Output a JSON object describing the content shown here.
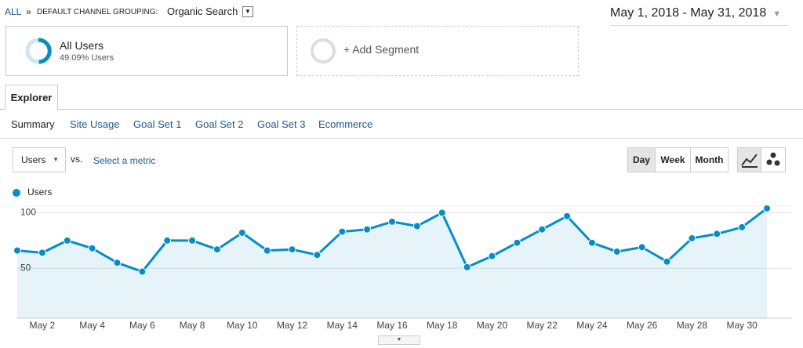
{
  "breadcrumb": {
    "root": "ALL",
    "separator": "»",
    "dimension": "DEFAULT CHANNEL GROUPING:",
    "value": "Organic Search"
  },
  "date_range": "May 1, 2018 - May 31, 2018",
  "segments": [
    {
      "name": "All Users",
      "detail": "49.09% Users"
    },
    {
      "name": "+ Add Segment"
    }
  ],
  "tabs": [
    "Explorer"
  ],
  "subtabs": [
    "Summary",
    "Site Usage",
    "Goal Set 1",
    "Goal Set 2",
    "Goal Set 3",
    "Ecommerce"
  ],
  "metric_selector": {
    "metric": "Users",
    "vs": "vs.",
    "secondary": "Select a metric"
  },
  "granularity": [
    "Day",
    "Week",
    "Month"
  ],
  "chart_data": {
    "type": "line",
    "categories": [
      null,
      "May 2",
      null,
      "May 4",
      null,
      "May 6",
      null,
      "May 8",
      null,
      "May 10",
      null,
      "May 12",
      null,
      "May 14",
      null,
      "May 16",
      null,
      "May 18",
      null,
      "May 20",
      null,
      "May 22",
      null,
      "May 24",
      null,
      "May 26",
      null,
      "May 28",
      null,
      "May 30",
      null
    ],
    "series": [
      {
        "name": "Users",
        "color": "#058dc7",
        "values": [
          66,
          64,
          75,
          68,
          55,
          47,
          75,
          75,
          67,
          82,
          66,
          67,
          62,
          83,
          85,
          92,
          88,
          100,
          51,
          61,
          73,
          85,
          97,
          73,
          65,
          69,
          56,
          77,
          81,
          87,
          104
        ]
      }
    ],
    "ylim": [
      5,
      106
    ],
    "yticks": [
      50,
      100
    ],
    "grid": true,
    "area": true
  }
}
